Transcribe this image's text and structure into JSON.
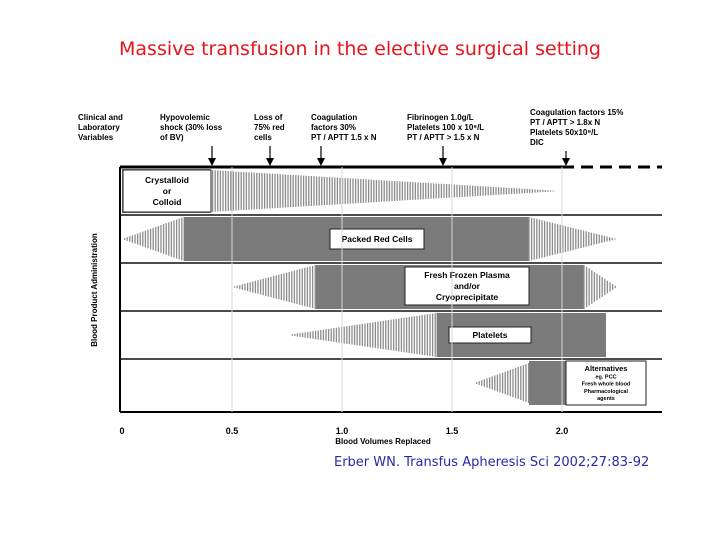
{
  "title": "Massive transfusion in the elective surgical setting",
  "citation": "Erber WN. Transfus Apheresis Sci 2002;27:83-92",
  "top_labels": [
    {
      "lines": [
        "Clinical and",
        "Laboratory",
        "Variables"
      ],
      "has_arrow": false
    },
    {
      "lines": [
        "Hypovolemic",
        "shock (30% loss",
        "of BV)"
      ],
      "has_arrow": true
    },
    {
      "lines": [
        "Loss of",
        "75% red",
        "cells"
      ],
      "has_arrow": true
    },
    {
      "lines": [
        "Coagulation",
        "factors 30%",
        "PT / APTT 1.5 x N"
      ],
      "has_arrow": true
    },
    {
      "lines": [
        "Fibrinogen 1.0g/L",
        "Platelets 100 x 10⁹/L",
        "PT / APTT > 1.5 x N"
      ],
      "has_arrow": true
    },
    {
      "lines": [
        "Coagulation factors 15%",
        "PT / APTT > 1.8x N",
        "Platelets 50x10⁹/L",
        "DIC"
      ],
      "has_arrow": true
    }
  ],
  "y_axis_label": "Blood  Product Administration",
  "x_axis_label": "Blood Volumes Replaced",
  "x_ticks": [
    "0",
    "0.5",
    "1.0",
    "1.5",
    "2.0"
  ],
  "products": [
    {
      "name": "crystalloid-or-colloid",
      "label_lines": [
        "Crystalloid",
        "or",
        "Colloid"
      ],
      "ramp_in": null,
      "solid": [
        0,
        0.4
      ],
      "ramp_out": [
        0.4,
        2.0
      ]
    },
    {
      "name": "packed-red-cells",
      "label_lines": [
        "Packed Red Cells"
      ],
      "ramp_in": [
        0,
        0.28
      ],
      "solid": [
        0.28,
        1.85
      ],
      "ramp_out": [
        1.85,
        2.25
      ]
    },
    {
      "name": "fresh-frozen-plasma",
      "label_lines": [
        "Fresh Frozen Plasma",
        "and/or",
        "Cryoprecipitate"
      ],
      "ramp_in": [
        0.5,
        0.88
      ],
      "solid": [
        0.88,
        2.1
      ],
      "ramp_out": [
        2.1,
        2.25
      ]
    },
    {
      "name": "platelets",
      "label_lines": [
        "Platelets"
      ],
      "ramp_in": [
        0.75,
        1.43
      ],
      "solid": [
        1.43,
        2.2
      ],
      "ramp_out": null
    },
    {
      "name": "alternatives",
      "label_lines": [
        "Alternatives",
        "eg.  PCC",
        "Fresh whole blood",
        "Pharmacological",
        "agents"
      ],
      "ramp_in": [
        1.6,
        1.85
      ],
      "solid": [
        1.85,
        2.2
      ],
      "ramp_out": null
    }
  ],
  "colors": {
    "title": "#e8141b",
    "citation": "#2a2aa8",
    "solid_fill": "#7a7a7a",
    "ramp": "#8c8c8c"
  }
}
